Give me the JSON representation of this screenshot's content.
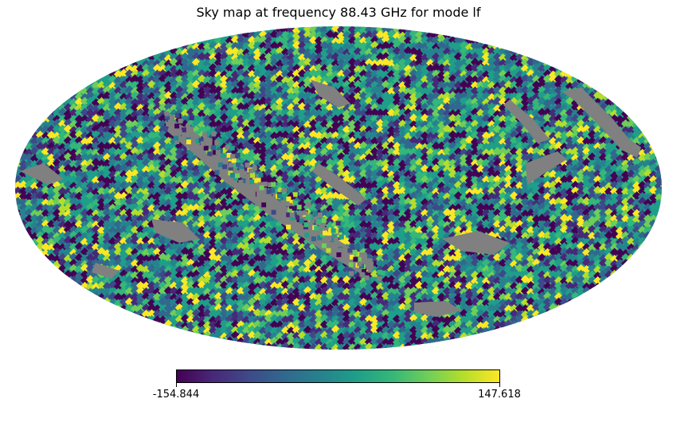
{
  "chart_data": {
    "type": "heatmap",
    "projection": "mollweide",
    "title": "Sky map at frequency 88.43 GHz for mode lf",
    "colormap": "viridis",
    "masked_color": "#808080",
    "colorbar": {
      "min": -154.844,
      "max": 147.618,
      "min_label": "-154.844",
      "max_label": "147.618",
      "orientation": "horizontal"
    },
    "colormap_stops": [
      "#440154",
      "#482878",
      "#3e4989",
      "#31688e",
      "#26828e",
      "#1f9e89",
      "#35b779",
      "#6ece58",
      "#b5de2b",
      "#fde725"
    ]
  }
}
